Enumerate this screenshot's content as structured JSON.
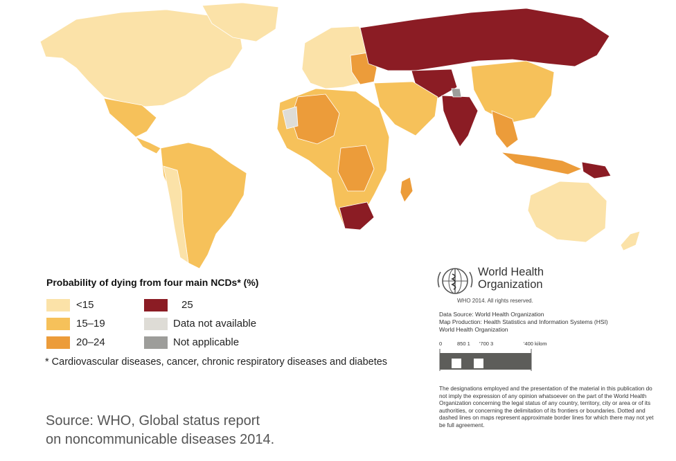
{
  "legend": {
    "title": "Probability of dying from four main NCDs* (%)",
    "items": [
      {
        "label": "<15",
        "color": "#fbe2a8"
      },
      {
        "label": "15–19",
        "color": "#f6c15a"
      },
      {
        "label": "20–24",
        "color": "#ec9c3a"
      },
      {
        "label": "25",
        "color": "#8b1c24"
      },
      {
        "label": "Data not available",
        "color": "#dedcd6"
      },
      {
        "label": "Not applicable",
        "color": "#9d9d9a"
      }
    ]
  },
  "footnote": "* Cardiovascular diseases, cancer, chronic respiratory diseases and diabetes",
  "source": {
    "line1": "Source: WHO, Global status report",
    "line2": "on noncommunicable diseases 2014."
  },
  "who": {
    "name_line1": "World Health",
    "name_line2": "Organization",
    "rights": "WHO 2014. All rights reserved.",
    "credit1": "Data Source: World Health Organization",
    "credit2": "Map Production: Health Statistics and Information Systems (HSI)",
    "credit3": "World Health Organization"
  },
  "scale": {
    "tick0": "0",
    "tick1": "850 1",
    "tick2": "'700 3",
    "tick3": "'400 kilometers"
  },
  "disclaimer": "The designations employed and the presentation of the material in this publication do not imply the expression of any opinion whatsoever on the part of the World Health Organization concerning the legal status of any country, territory, city or area or of its authorities, or concerning the delimitation of its frontiers or boundaries. Dotted and dashed lines on maps represent approximate border lines for which there may not yet be full agreement.",
  "colors": {
    "lt15": "#fbe2a8",
    "c15_19": "#f6c15a",
    "c20_24": "#ec9c3a",
    "c25": "#8b1c24",
    "na": "#dedcd6",
    "notapp": "#9d9d9a",
    "water": "#ffffff"
  },
  "regions": [
    {
      "name": "north-america",
      "category": "lt15"
    },
    {
      "name": "greenland",
      "category": "lt15"
    },
    {
      "name": "mexico",
      "category": "c15_19"
    },
    {
      "name": "south-america",
      "category": "c15_19"
    },
    {
      "name": "europe",
      "category": "lt15"
    },
    {
      "name": "russia",
      "category": "c25"
    },
    {
      "name": "africa",
      "category": "c15_19"
    },
    {
      "name": "south-africa",
      "category": "c25"
    },
    {
      "name": "india",
      "category": "c25"
    },
    {
      "name": "china",
      "category": "c15_19"
    },
    {
      "name": "australia",
      "category": "lt15"
    }
  ]
}
